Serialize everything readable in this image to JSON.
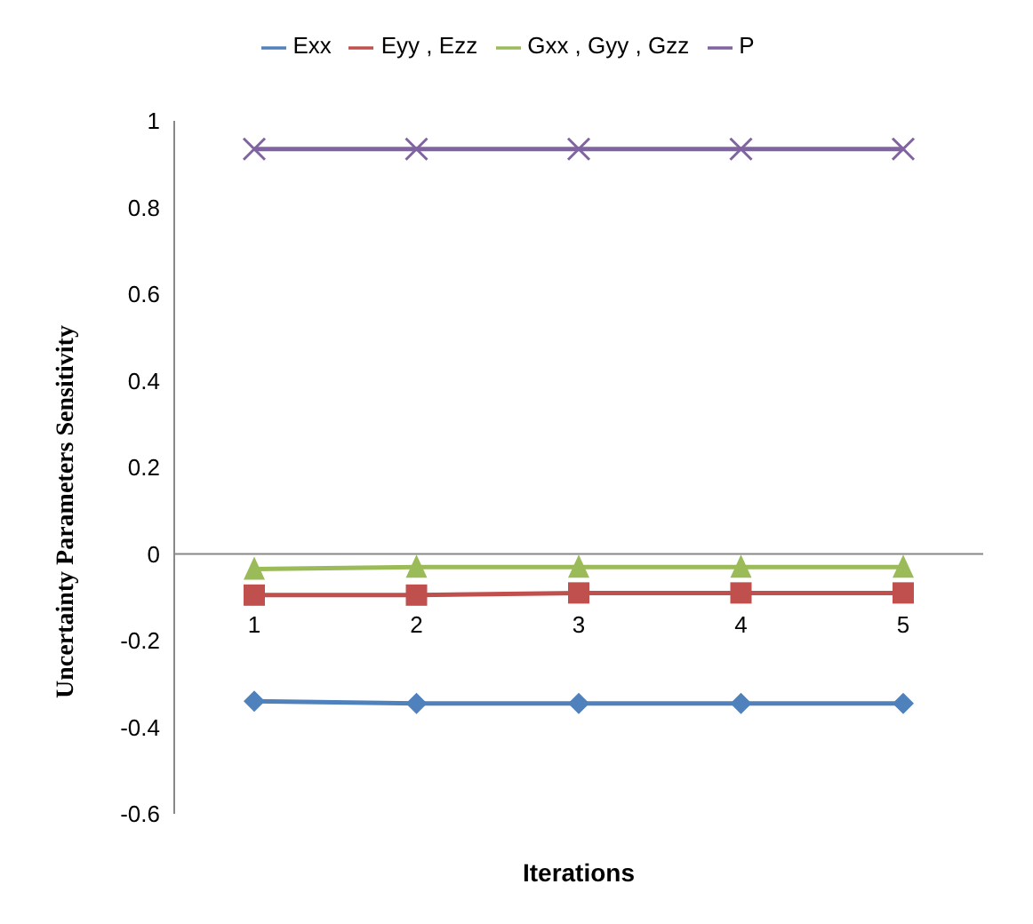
{
  "chart_data": {
    "type": "line",
    "xlabel": "Iterations",
    "ylabel": "Uncertainty Parameters Sensitivity",
    "categories": [
      "1",
      "2",
      "3",
      "4",
      "5"
    ],
    "series": [
      {
        "name": "Exx",
        "color": "#4f81bd",
        "marker": "diamond",
        "values": [
          -0.34,
          -0.345,
          -0.345,
          -0.345,
          -0.345
        ]
      },
      {
        "name": "Eyy , Ezz",
        "color": "#c0504d",
        "marker": "square",
        "values": [
          -0.095,
          -0.095,
          -0.09,
          -0.09,
          -0.09
        ]
      },
      {
        "name": "Gxx , Gyy , Gzz",
        "color": "#9bbb59",
        "marker": "triangle",
        "values": [
          -0.035,
          -0.03,
          -0.03,
          -0.03,
          -0.03
        ]
      },
      {
        "name": "P",
        "color": "#8064a2",
        "marker": "cross",
        "values": [
          0.935,
          0.935,
          0.935,
          0.935,
          0.935
        ]
      }
    ],
    "ylim": [
      -0.6,
      1
    ],
    "yticks": [
      -0.6,
      -0.4,
      -0.2,
      0,
      0.2,
      0.4,
      0.6,
      0.8,
      1
    ],
    "grid": false,
    "legend": "top",
    "line_style": "solid"
  }
}
